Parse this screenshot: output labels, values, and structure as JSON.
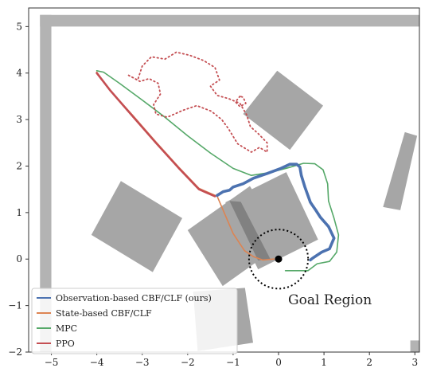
{
  "chart_data": {
    "type": "line",
    "title": "",
    "xlabel": "",
    "ylabel": "",
    "xlim": [
      -5.5,
      3.1
    ],
    "ylim": [
      -2.0,
      5.4
    ],
    "xticks": [
      -5,
      -4,
      -3,
      -2,
      -1,
      0,
      1,
      2,
      3
    ],
    "yticks": [
      -2,
      -1,
      0,
      1,
      2,
      3,
      4,
      5
    ],
    "grid": false,
    "legend_placement": "lower-left",
    "walls": {
      "color": "#b3b3b3",
      "rects": [
        {
          "x0": -5.25,
          "x1": 3.1,
          "y0": 5.0,
          "y1": 5.25
        },
        {
          "x0": -5.25,
          "x1": -5.0,
          "y0": -2.0,
          "y1": 5.25
        },
        {
          "x0": 2.9,
          "x1": 3.1,
          "y0": -2.0,
          "y1": -1.75
        }
      ]
    },
    "obstacles": {
      "color": "#a6a6a6",
      "polygons": [
        [
          [
            -0.03,
            4.05
          ],
          [
            0.98,
            3.3
          ],
          [
            0.25,
            2.35
          ],
          [
            -0.78,
            3.12
          ]
        ],
        [
          [
            -3.47,
            1.68
          ],
          [
            -2.12,
            0.88
          ],
          [
            -2.77,
            -0.28
          ],
          [
            -4.12,
            0.52
          ]
        ],
        [
          [
            -2.0,
            0.62
          ],
          [
            -0.63,
            1.57
          ],
          [
            0.15,
            0.38
          ],
          [
            -1.23,
            -0.58
          ]
        ],
        [
          [
            0.17,
            1.87
          ],
          [
            0.87,
            0.42
          ],
          [
            -0.45,
            -0.22
          ],
          [
            -1.17,
            1.22
          ]
        ],
        [
          [
            3.05,
            2.65
          ],
          [
            2.68,
            1.05
          ],
          [
            2.3,
            1.12
          ],
          [
            2.78,
            2.73
          ]
        ],
        [
          [
            -0.74,
            -0.62
          ],
          [
            -0.56,
            -1.8
          ],
          [
            -1.78,
            -1.98
          ],
          [
            -1.88,
            -0.7
          ]
        ]
      ],
      "highlight": {
        "polygon": [
          [
            -1.08,
            1.25
          ],
          [
            -0.83,
            1.23
          ],
          [
            -0.18,
            0.0
          ],
          [
            -0.45,
            -0.03
          ]
        ],
        "color": "#7a7a7a"
      }
    },
    "goal": {
      "label": "Goal Region",
      "center": [
        0.0,
        0.0
      ],
      "radius": 0.65
    },
    "series": [
      {
        "name": "Observation-based CBF/CLF (ours)",
        "color": "#4c72b0",
        "points": [
          [
            -1.35,
            1.37
          ],
          [
            -1.22,
            1.45
          ],
          [
            -1.08,
            1.48
          ],
          [
            -1.0,
            1.55
          ],
          [
            -0.78,
            1.62
          ],
          [
            -0.55,
            1.74
          ],
          [
            -0.25,
            1.84
          ],
          [
            0.05,
            1.95
          ],
          [
            0.25,
            2.04
          ],
          [
            0.4,
            2.04
          ],
          [
            0.47,
            1.98
          ],
          [
            0.5,
            1.8
          ],
          [
            0.58,
            1.55
          ],
          [
            0.7,
            1.22
          ],
          [
            0.82,
            1.05
          ],
          [
            0.92,
            0.9
          ],
          [
            1.1,
            0.7
          ],
          [
            1.22,
            0.45
          ],
          [
            1.12,
            0.22
          ],
          [
            0.95,
            0.15
          ],
          [
            0.75,
            0.02
          ],
          [
            0.7,
            -0.02
          ]
        ]
      },
      {
        "name": "State-based CBF/CLF",
        "color": "#dd8452",
        "points": [
          [
            -4.0,
            4.02
          ],
          [
            -3.7,
            3.62
          ],
          [
            -3.2,
            3.08
          ],
          [
            -2.7,
            2.52
          ],
          [
            -2.2,
            1.98
          ],
          [
            -1.75,
            1.52
          ],
          [
            -1.35,
            1.35
          ],
          [
            -1.22,
            1.05
          ],
          [
            -1.0,
            0.55
          ],
          [
            -0.75,
            0.18
          ],
          [
            -0.55,
            0.05
          ],
          [
            -0.35,
            -0.02
          ],
          [
            -0.1,
            0.0
          ]
        ]
      },
      {
        "name": "MPC",
        "color": "#55a868",
        "points": [
          [
            -4.0,
            4.05
          ],
          [
            -3.85,
            4.02
          ],
          [
            -3.5,
            3.78
          ],
          [
            -3.0,
            3.42
          ],
          [
            -2.5,
            3.05
          ],
          [
            -2.0,
            2.65
          ],
          [
            -1.5,
            2.28
          ],
          [
            -1.0,
            1.95
          ],
          [
            -0.6,
            1.8
          ],
          [
            -0.2,
            1.86
          ],
          [
            0.2,
            1.96
          ],
          [
            0.55,
            2.06
          ],
          [
            0.8,
            2.05
          ],
          [
            0.98,
            1.92
          ],
          [
            1.08,
            1.62
          ],
          [
            1.1,
            1.25
          ],
          [
            1.22,
            0.88
          ],
          [
            1.32,
            0.52
          ],
          [
            1.28,
            0.15
          ],
          [
            1.12,
            -0.05
          ],
          [
            0.85,
            -0.1
          ],
          [
            0.65,
            -0.25
          ],
          [
            0.15,
            -0.25
          ]
        ]
      },
      {
        "name": "PPO",
        "color": "#c44e52",
        "points": [
          [
            -4.0,
            4.0
          ],
          [
            -3.7,
            3.62
          ],
          [
            -3.2,
            3.06
          ],
          [
            -2.7,
            2.5
          ],
          [
            -2.2,
            1.96
          ],
          [
            -1.75,
            1.5
          ],
          [
            -1.4,
            1.35
          ]
        ]
      },
      {
        "name": "",
        "color": "#c44e52",
        "dotted": true,
        "points": [
          [
            -3.3,
            3.95
          ],
          [
            -3.1,
            3.85
          ],
          [
            -3.0,
            4.15
          ],
          [
            -2.8,
            4.35
          ],
          [
            -2.5,
            4.3
          ],
          [
            -2.25,
            4.45
          ],
          [
            -1.95,
            4.38
          ],
          [
            -1.65,
            4.27
          ],
          [
            -1.4,
            4.12
          ],
          [
            -1.3,
            3.85
          ],
          [
            -1.5,
            3.72
          ],
          [
            -1.35,
            3.52
          ],
          [
            -1.1,
            3.45
          ],
          [
            -0.85,
            3.35
          ],
          [
            -0.7,
            3.1
          ],
          [
            -0.62,
            2.85
          ],
          [
            -0.45,
            2.7
          ],
          [
            -0.25,
            2.5
          ],
          [
            -0.25,
            2.3
          ],
          [
            -0.42,
            2.4
          ],
          [
            -0.6,
            2.3
          ],
          [
            -0.9,
            2.48
          ],
          [
            -1.1,
            2.8
          ],
          [
            -1.25,
            3.0
          ],
          [
            -1.48,
            3.18
          ],
          [
            -1.8,
            3.3
          ],
          [
            -2.1,
            3.2
          ],
          [
            -2.45,
            3.05
          ],
          [
            -2.7,
            3.12
          ],
          [
            -2.75,
            3.32
          ],
          [
            -2.6,
            3.55
          ],
          [
            -2.65,
            3.78
          ],
          [
            -2.85,
            3.88
          ],
          [
            -3.05,
            3.82
          ],
          [
            -3.3,
            3.95
          ]
        ]
      },
      {
        "name": "",
        "color": "#c44e52",
        "dotted": true,
        "points": [
          [
            -0.85,
            3.5
          ],
          [
            -0.95,
            3.38
          ],
          [
            -0.85,
            3.28
          ],
          [
            -0.72,
            3.35
          ],
          [
            -0.78,
            3.48
          ],
          [
            -0.85,
            3.5
          ]
        ]
      }
    ]
  }
}
